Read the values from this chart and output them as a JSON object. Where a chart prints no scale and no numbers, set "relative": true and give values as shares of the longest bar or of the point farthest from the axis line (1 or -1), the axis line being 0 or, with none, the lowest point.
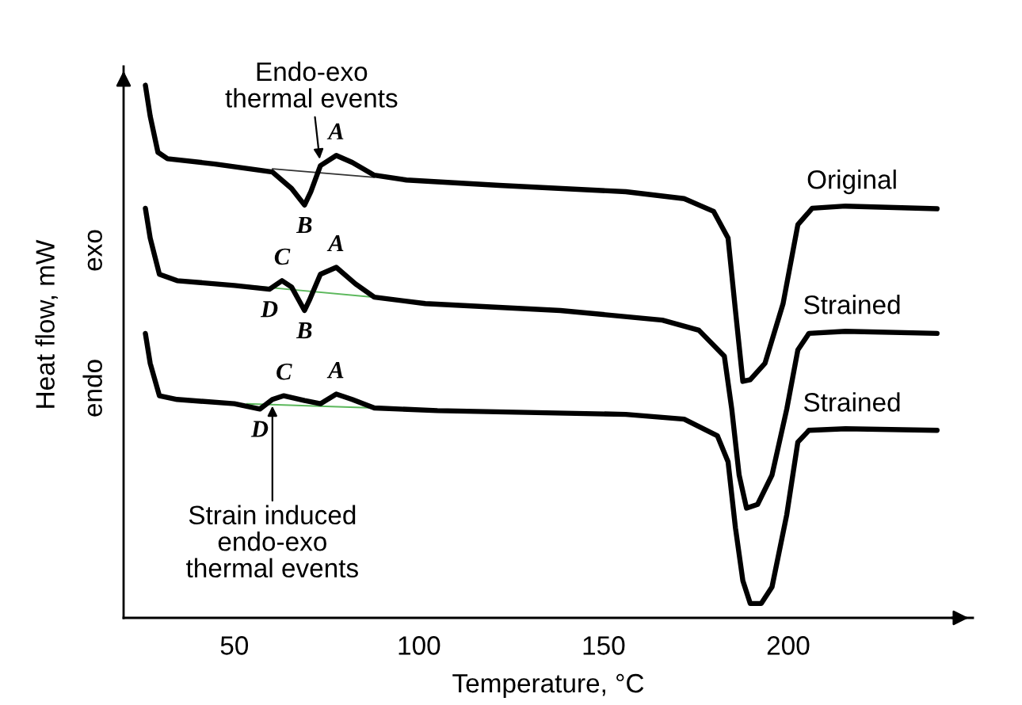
{
  "chart_data": {
    "type": "line",
    "relative": true,
    "xlabel": "Temperature, °C",
    "ylabel": "Heat flow, mW",
    "xlim": [
      20,
      250
    ],
    "xticks": [
      50,
      100,
      150,
      200
    ],
    "grid": false,
    "legend": false,
    "series": [
      {
        "name": "Original",
        "color": "#000000",
        "x": [
          25.9,
          27.2,
          29.3,
          31.9,
          44.8,
          60.3,
          65.5,
          69.0,
          70.7,
          73.3,
          77.6,
          81.9,
          87.9,
          96.6,
          121.7,
          156.0,
          171.8,
          179.8,
          183.7,
          185.7,
          187.7,
          189.7,
          193.7,
          198.6,
          202.6,
          206.5,
          215.5,
          240.3
        ],
        "values": [
          1.0,
          0.942,
          0.874,
          0.862,
          0.852,
          0.837,
          0.806,
          0.775,
          0.8,
          0.849,
          0.868,
          0.855,
          0.831,
          0.822,
          0.812,
          0.8,
          0.787,
          0.763,
          0.713,
          0.577,
          0.444,
          0.447,
          0.478,
          0.59,
          0.738,
          0.769,
          0.773,
          0.768
        ]
      },
      {
        "name": "Strained",
        "color": "#000000",
        "x": [
          25.9,
          27.2,
          29.7,
          34.5,
          50,
          59.5,
          62.9,
          65.5,
          69.0,
          70.3,
          73.3,
          77.6,
          82.8,
          87.9,
          101.7,
          138.3,
          165.9,
          175.8,
          182.7,
          184.7,
          186.7,
          188.7,
          191.7,
          195.6,
          199.6,
          202.6,
          205.6,
          215.5,
          240.3
        ],
        "values": [
          0.769,
          0.713,
          0.645,
          0.633,
          0.624,
          0.617,
          0.633,
          0.621,
          0.577,
          0.596,
          0.645,
          0.658,
          0.627,
          0.602,
          0.59,
          0.577,
          0.559,
          0.54,
          0.491,
          0.392,
          0.268,
          0.206,
          0.213,
          0.268,
          0.392,
          0.503,
          0.534,
          0.538,
          0.534
        ]
      },
      {
        "name": "Strained",
        "color": "#000000",
        "x": [
          25.9,
          27.2,
          29.7,
          34.5,
          50,
          56.9,
          60.3,
          63.4,
          69.0,
          73.3,
          77.6,
          81.9,
          87.9,
          105,
          156,
          171.8,
          180.8,
          183.7,
          185.7,
          187.7,
          189.7,
          192.7,
          195.6,
          199.6,
          202.6,
          205.6,
          215.5,
          240.3
        ],
        "values": [
          0.534,
          0.478,
          0.417,
          0.41,
          0.402,
          0.392,
          0.41,
          0.417,
          0.408,
          0.402,
          0.42,
          0.41,
          0.394,
          0.389,
          0.382,
          0.373,
          0.342,
          0.293,
          0.169,
          0.07,
          0.027,
          0.027,
          0.058,
          0.194,
          0.33,
          0.352,
          0.355,
          0.352
        ]
      },
      {
        "color": "#333333",
        "x": [
          60.3,
          87.9
        ],
        "values": [
          0.843,
          0.827
        ]
      },
      {
        "color": "#5cb85c",
        "x": [
          53.4,
          87.9
        ],
        "values": [
          0.624,
          0.602
        ]
      },
      {
        "color": "#5cb85c",
        "x": [
          53.4,
          87.9
        ],
        "values": [
          0.402,
          0.394
        ]
      }
    ],
    "annotations": [
      {
        "text": "A",
        "x": 77.6,
        "y": 0.868
      },
      {
        "text": "B",
        "x": 69.0,
        "y": 0.775
      },
      {
        "text": "C",
        "x": 62.9,
        "y": 0.633
      },
      {
        "text": "A",
        "x": 77.6,
        "y": 0.658
      },
      {
        "text": "D",
        "x": 59.5,
        "y": 0.617
      },
      {
        "text": "B",
        "x": 69.0,
        "y": 0.577
      },
      {
        "text": "C",
        "x": 63.4,
        "y": 0.417
      },
      {
        "text": "A",
        "x": 77.6,
        "y": 0.42
      },
      {
        "text": "D",
        "x": 56.9,
        "y": 0.392
      },
      {
        "text": "Endo-exo\nthermal events",
        "x": 73.3,
        "y": 0.849
      },
      {
        "text": "Strain induced\nendo-exo\nthermal events",
        "x": 60.3,
        "y": 0.41
      },
      "exo",
      "endo"
    ]
  }
}
